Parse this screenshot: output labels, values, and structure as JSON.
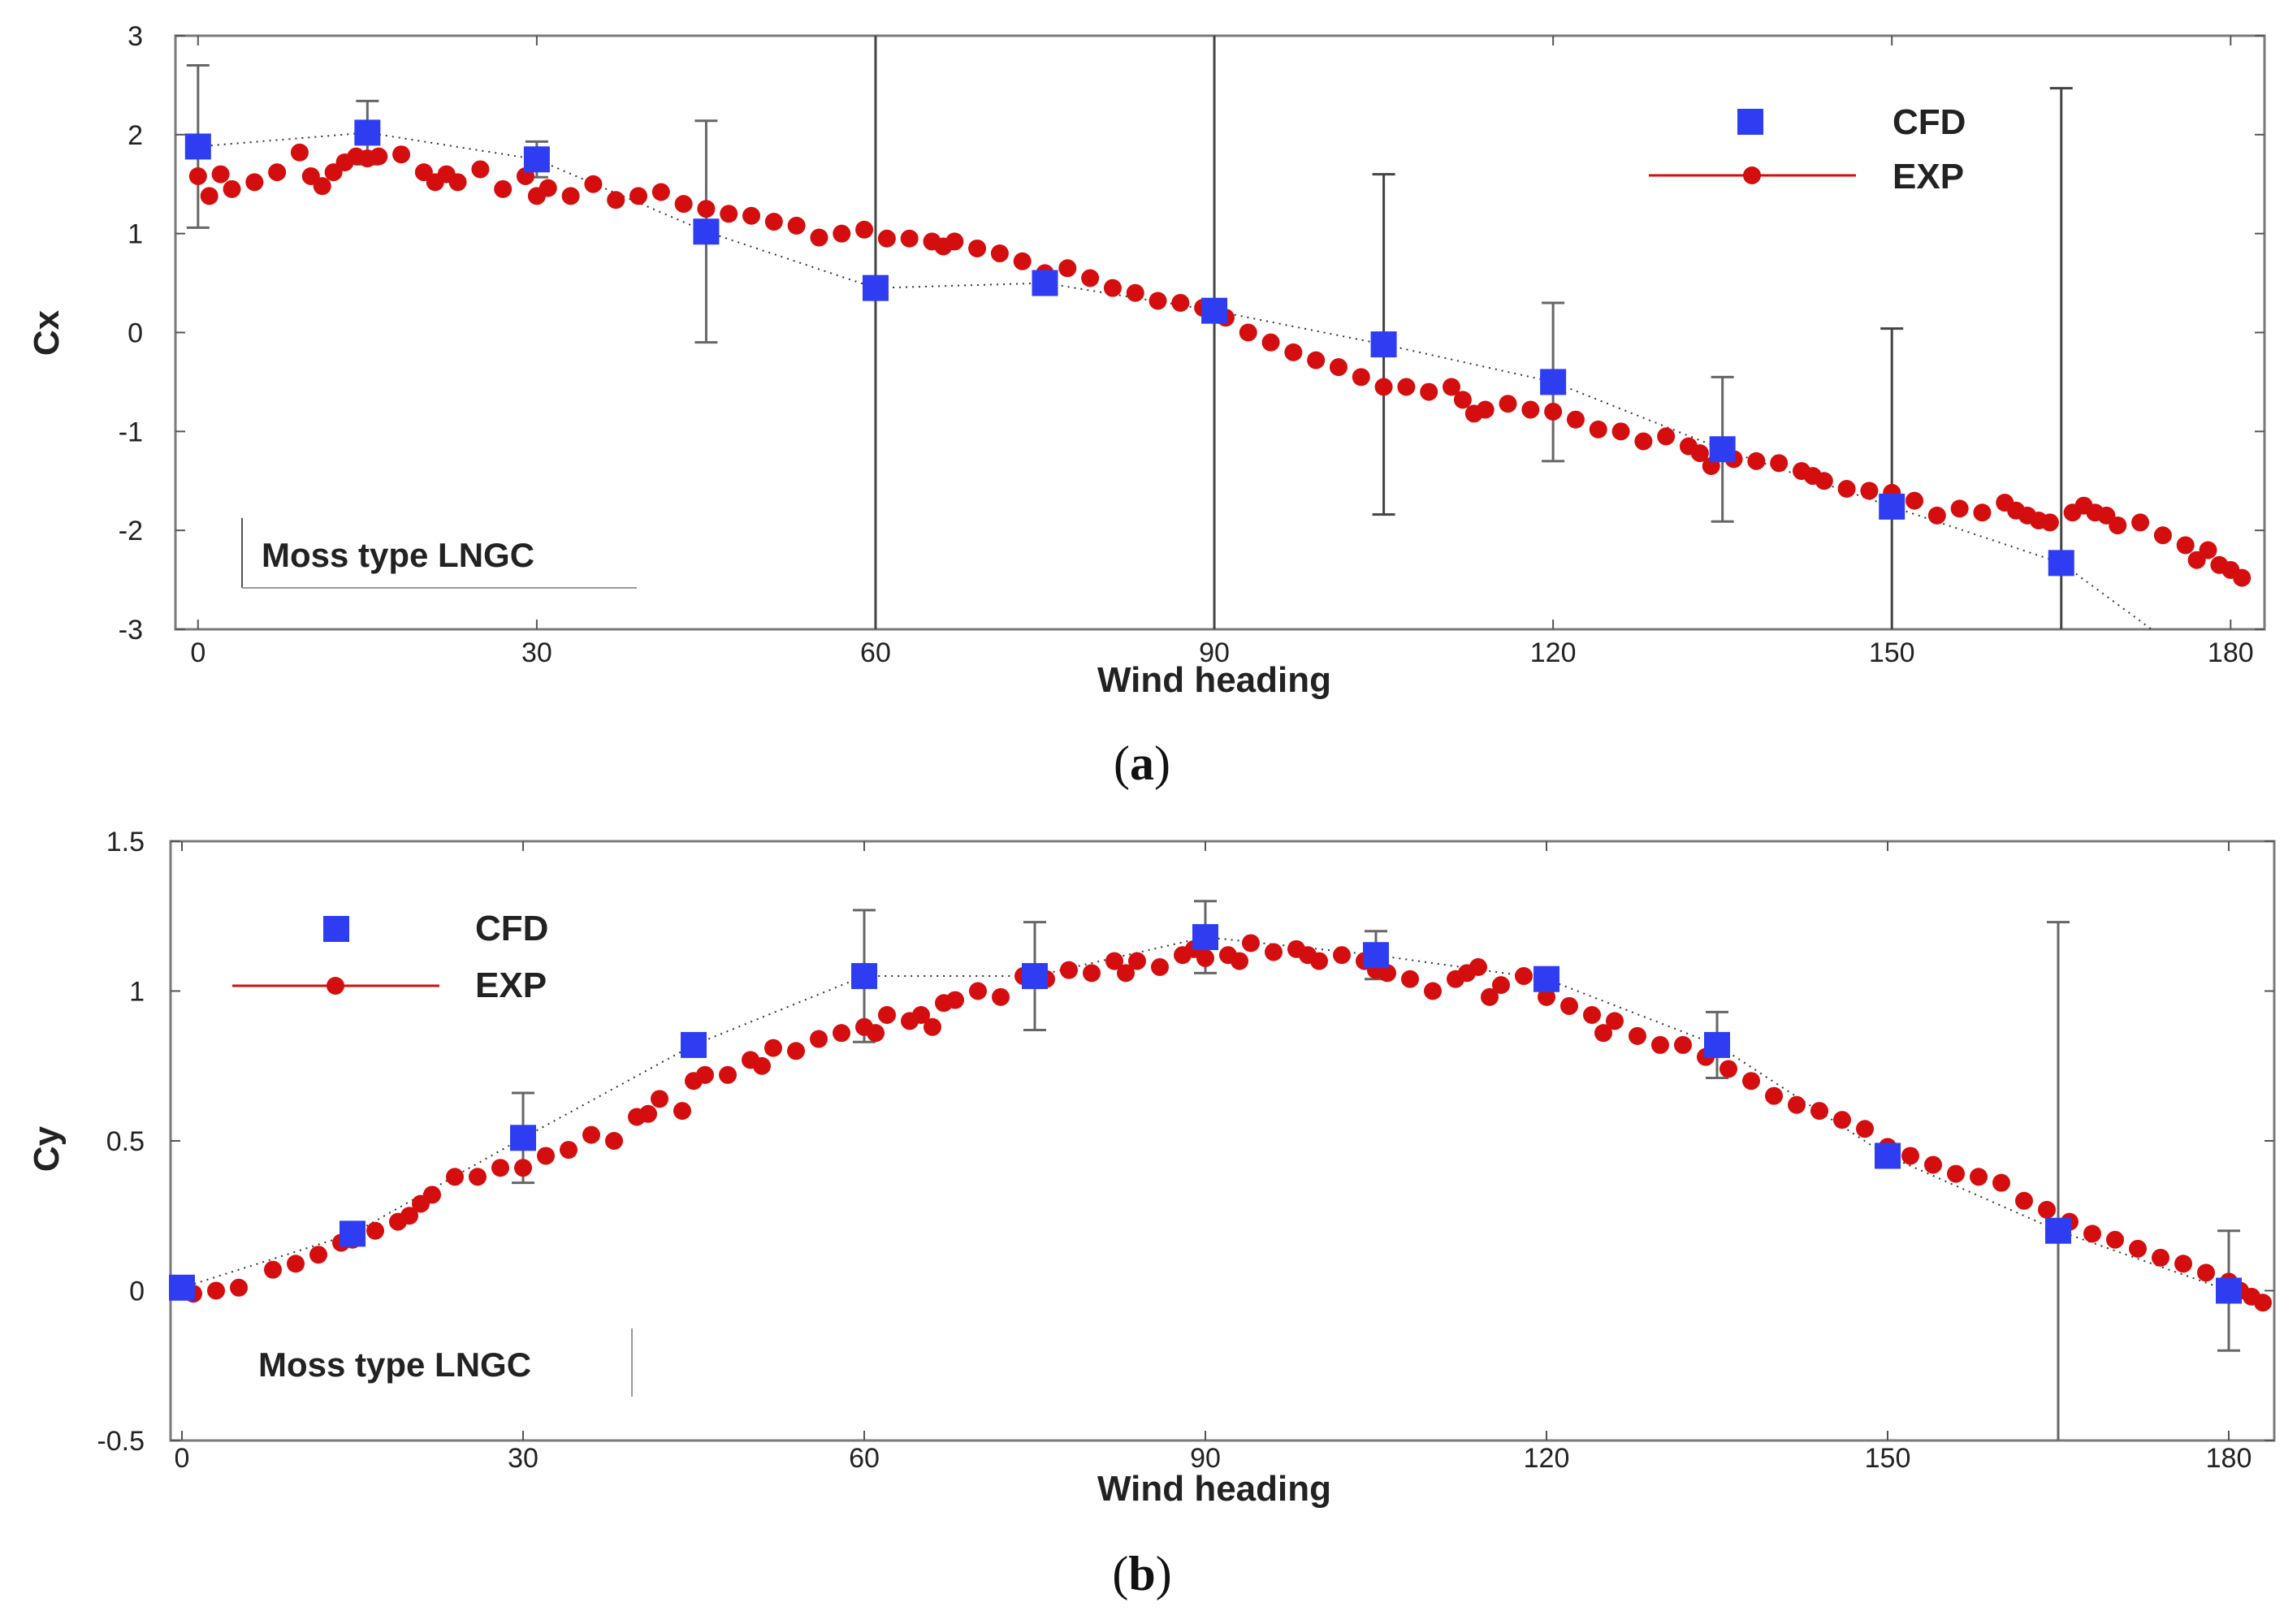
{
  "chart_data": [
    {
      "id": "a",
      "type": "scatter",
      "panel_label": "a",
      "xlabel": "Wind heading",
      "ylabel": "Cx",
      "xlim": [
        -2,
        183
      ],
      "ylim": [
        -3,
        3
      ],
      "xticks": [
        0,
        30,
        60,
        90,
        120,
        150,
        180
      ],
      "yticks": [
        -3,
        -2,
        -1,
        0,
        1,
        2,
        3
      ],
      "legend": {
        "position": "top-right",
        "entries": [
          "CFD",
          "EXP"
        ]
      },
      "annotation": "Moss type LNGC",
      "colors": {
        "cfd": "#2e3df2",
        "exp": "#d40e0e",
        "error_bar": "#333333",
        "frame": "#777777"
      },
      "series": [
        {
          "name": "CFD",
          "x": [
            0,
            15,
            30,
            45,
            60,
            75,
            90,
            105,
            120,
            135,
            150,
            165
          ],
          "y": [
            1.88,
            2.02,
            1.75,
            1.02,
            0.45,
            0.5,
            0.22,
            -0.12,
            -0.5,
            -1.18,
            -1.76,
            -2.33
          ],
          "error": [
            0.82,
            0.32,
            0.18,
            1.12,
            5.0,
            0.1,
            5.0,
            1.72,
            0.8,
            0.73,
            1.8,
            4.8
          ]
        },
        {
          "name": "EXP",
          "x": [
            0,
            1,
            2,
            3,
            5,
            7,
            9,
            10,
            11,
            12,
            13,
            14,
            15,
            16,
            18,
            20,
            21,
            22,
            23,
            25,
            27,
            29,
            30,
            31,
            33,
            35,
            37,
            39,
            41,
            43,
            45,
            47,
            49,
            51,
            53,
            55,
            57,
            59,
            61,
            63,
            65,
            66,
            67,
            69,
            71,
            73,
            75,
            77,
            79,
            81,
            83,
            85,
            87,
            89,
            91,
            93,
            95,
            97,
            99,
            101,
            103,
            105,
            107,
            109,
            111,
            112,
            113,
            114,
            116,
            118,
            120,
            122,
            124,
            126,
            128,
            130,
            132,
            133,
            134,
            136,
            138,
            140,
            142,
            143,
            144,
            146,
            148,
            150,
            152,
            154,
            156,
            158,
            160,
            161,
            162,
            163,
            164,
            166,
            167,
            168,
            169,
            170,
            172,
            174,
            176,
            177,
            178,
            179,
            180,
            181
          ],
          "y": [
            1.58,
            1.38,
            1.6,
            1.45,
            1.52,
            1.62,
            1.82,
            1.58,
            1.48,
            1.62,
            1.72,
            1.78,
            1.76,
            1.78,
            1.8,
            1.62,
            1.52,
            1.6,
            1.52,
            1.65,
            1.45,
            1.58,
            1.38,
            1.46,
            1.38,
            1.5,
            1.34,
            1.38,
            1.42,
            1.3,
            1.25,
            1.2,
            1.18,
            1.12,
            1.08,
            0.96,
            1.0,
            1.04,
            0.95,
            0.95,
            0.92,
            0.87,
            0.92,
            0.85,
            0.8,
            0.72,
            0.6,
            0.65,
            0.55,
            0.45,
            0.4,
            0.32,
            0.3,
            0.25,
            0.15,
            0.0,
            -0.1,
            -0.2,
            -0.28,
            -0.35,
            -0.45,
            -0.55,
            -0.55,
            -0.6,
            -0.55,
            -0.68,
            -0.82,
            -0.78,
            -0.72,
            -0.78,
            -0.8,
            -0.88,
            -0.98,
            -1.0,
            -1.1,
            -1.05,
            -1.15,
            -1.22,
            -1.35,
            -1.28,
            -1.3,
            -1.32,
            -1.4,
            -1.45,
            -1.5,
            -1.58,
            -1.6,
            -1.62,
            -1.7,
            -1.85,
            -1.78,
            -1.82,
            -1.72,
            -1.8,
            -1.85,
            -1.9,
            -1.92,
            -1.82,
            -1.75,
            -1.82,
            -1.85,
            -1.95,
            -1.92,
            -2.05,
            -2.15,
            -2.3,
            -2.2,
            -2.35,
            -2.4,
            -2.48
          ]
        }
      ]
    },
    {
      "id": "b",
      "type": "scatter",
      "panel_label": "b",
      "xlabel": "Wind heading",
      "ylabel": "Cy",
      "xlim": [
        -1,
        184
      ],
      "ylim": [
        -0.5,
        1.5
      ],
      "xticks": [
        0,
        30,
        60,
        90,
        120,
        150,
        180
      ],
      "yticks": [
        -0.5,
        0,
        0.5,
        1,
        1.5
      ],
      "ytick_labels": [
        "-0.5",
        "0",
        "0.5",
        "1",
        "1.5"
      ],
      "legend": {
        "position": "top-left",
        "entries": [
          "CFD",
          "EXP"
        ]
      },
      "annotation": "Moss type LNGC",
      "colors": {
        "cfd": "#2e3df2",
        "exp": "#d40e0e",
        "error_bar": "#333333",
        "frame": "#777777"
      },
      "series": [
        {
          "name": "CFD",
          "x": [
            0,
            15,
            30,
            45,
            60,
            75,
            90,
            105,
            120,
            135,
            150,
            165,
            180
          ],
          "y": [
            0.01,
            0.19,
            0.51,
            0.82,
            1.05,
            1.05,
            1.18,
            1.12,
            1.04,
            0.82,
            0.45,
            0.2,
            0.0
          ],
          "error": [
            0.0,
            0.0,
            0.15,
            0.0,
            0.22,
            0.18,
            0.12,
            0.08,
            0.0,
            0.11,
            0.0,
            1.03,
            0.2
          ]
        },
        {
          "name": "EXP",
          "x": [
            1,
            3,
            5,
            8,
            10,
            12,
            14,
            15,
            17,
            19,
            20,
            21,
            22,
            24,
            26,
            28,
            30,
            32,
            34,
            36,
            38,
            40,
            41,
            42,
            44,
            45,
            46,
            48,
            50,
            51,
            52,
            54,
            56,
            58,
            60,
            61,
            62,
            64,
            65,
            66,
            67,
            68,
            70,
            72,
            74,
            76,
            78,
            80,
            82,
            83,
            84,
            86,
            88,
            89,
            90,
            92,
            93,
            94,
            96,
            98,
            99,
            100,
            102,
            104,
            105,
            106,
            108,
            110,
            112,
            113,
            114,
            115,
            116,
            118,
            120,
            122,
            124,
            125,
            126,
            128,
            130,
            132,
            134,
            136,
            138,
            140,
            142,
            144,
            146,
            148,
            150,
            152,
            154,
            156,
            158,
            160,
            162,
            164,
            166,
            168,
            170,
            172,
            174,
            176,
            178,
            180,
            181,
            182,
            183
          ],
          "y": [
            -0.01,
            0.0,
            0.01,
            0.07,
            0.09,
            0.12,
            0.16,
            0.17,
            0.2,
            0.23,
            0.25,
            0.29,
            0.32,
            0.38,
            0.38,
            0.41,
            0.41,
            0.45,
            0.47,
            0.52,
            0.5,
            0.58,
            0.59,
            0.64,
            0.6,
            0.7,
            0.72,
            0.72,
            0.77,
            0.75,
            0.81,
            0.8,
            0.84,
            0.86,
            0.88,
            0.86,
            0.92,
            0.9,
            0.92,
            0.88,
            0.96,
            0.97,
            1.0,
            0.98,
            1.05,
            1.04,
            1.07,
            1.06,
            1.1,
            1.06,
            1.1,
            1.08,
            1.12,
            1.14,
            1.11,
            1.12,
            1.1,
            1.16,
            1.13,
            1.14,
            1.12,
            1.1,
            1.12,
            1.1,
            1.07,
            1.06,
            1.04,
            1.0,
            1.04,
            1.06,
            1.08,
            0.98,
            1.02,
            1.05,
            0.98,
            0.95,
            0.92,
            0.86,
            0.9,
            0.85,
            0.82,
            0.82,
            0.78,
            0.74,
            0.7,
            0.65,
            0.62,
            0.6,
            0.57,
            0.54,
            0.48,
            0.45,
            0.42,
            0.39,
            0.38,
            0.36,
            0.3,
            0.27,
            0.23,
            0.19,
            0.17,
            0.14,
            0.11,
            0.09,
            0.06,
            0.03,
            0.0,
            -0.02,
            -0.04
          ]
        }
      ]
    }
  ]
}
